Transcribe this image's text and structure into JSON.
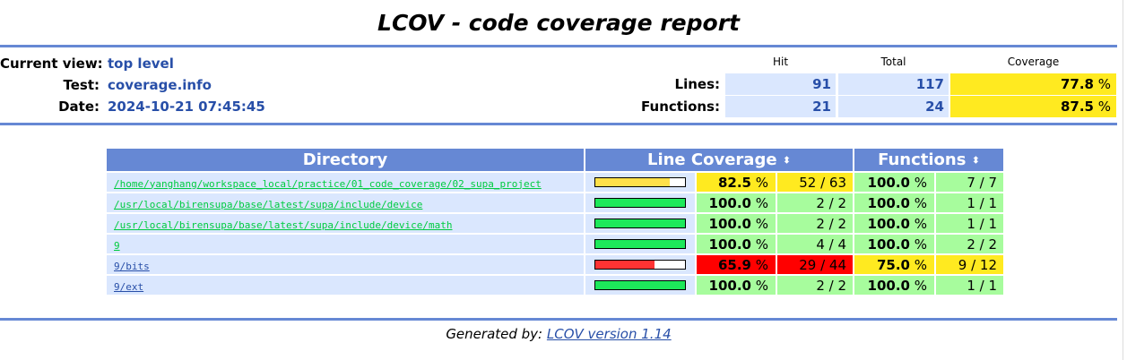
{
  "title": "LCOV - code coverage report",
  "header": {
    "info": [
      {
        "label": "Current view:",
        "value": "top level"
      },
      {
        "label": "Test:",
        "value": "coverage.info"
      },
      {
        "label": "Date:",
        "value": "2024-10-21 07:45:45"
      }
    ],
    "stats": {
      "columns": {
        "hit": "Hit",
        "total": "Total",
        "coverage": "Coverage"
      },
      "rows": [
        {
          "label": "Lines:",
          "hit": "91",
          "total": "117",
          "coverage": "77.8",
          "unit": " %",
          "level": "med"
        },
        {
          "label": "Functions:",
          "hit": "21",
          "total": "24",
          "coverage": "87.5",
          "unit": " %",
          "level": "med"
        }
      ]
    }
  },
  "table": {
    "headers": {
      "directory": "Directory",
      "line_coverage": "Line Coverage",
      "functions": "Functions",
      "sort_icon": "⬍"
    },
    "rows": [
      {
        "dir": "/home/yanghang/workspace_local/practice/01_code_coverage/02_supa_project",
        "bar_pct": 82.5,
        "bar_color": "#ffe04a",
        "line_pct": "82.5",
        "line_level": "med",
        "line_hits": "52 / 63",
        "func_pct": "100.0",
        "func_level": "hi",
        "func_hits": "7 / 7",
        "visited": false
      },
      {
        "dir": "/usr/local/birensupa/base/latest/supa/include/device",
        "bar_pct": 100,
        "bar_color": "#1de95a",
        "line_pct": "100.0",
        "line_level": "hi",
        "line_hits": "2 / 2",
        "func_pct": "100.0",
        "func_level": "hi",
        "func_hits": "1 / 1",
        "visited": false
      },
      {
        "dir": "/usr/local/birensupa/base/latest/supa/include/device/math",
        "bar_pct": 100,
        "bar_color": "#1de95a",
        "line_pct": "100.0",
        "line_level": "hi",
        "line_hits": "2 / 2",
        "func_pct": "100.0",
        "func_level": "hi",
        "func_hits": "1 / 1",
        "visited": false
      },
      {
        "dir": "9",
        "bar_pct": 100,
        "bar_color": "#1de95a",
        "line_pct": "100.0",
        "line_level": "hi",
        "line_hits": "4 / 4",
        "func_pct": "100.0",
        "func_level": "hi",
        "func_hits": "2 / 2",
        "visited": false
      },
      {
        "dir": "9/bits",
        "bar_pct": 65.9,
        "bar_color": "#ff3333",
        "line_pct": "65.9",
        "line_level": "lo",
        "line_hits": "29 / 44",
        "func_pct": "75.0",
        "func_level": "med",
        "func_hits": "9 / 12",
        "visited": true
      },
      {
        "dir": "9/ext",
        "bar_pct": 100,
        "bar_color": "#1de95a",
        "line_pct": "100.0",
        "line_level": "hi",
        "line_hits": "2 / 2",
        "func_pct": "100.0",
        "func_level": "hi",
        "func_hits": "1 / 1",
        "visited": true
      }
    ],
    "unit": " %"
  },
  "footer": {
    "prefix": "Generated by: ",
    "link": "LCOV version 1.14"
  },
  "colors": {
    "rule": "#6688d4",
    "hi": "#a7fc9d",
    "med": "#ffea20",
    "lo": "#ff0000",
    "cell_bg": "#dae7fe",
    "value_text": "#284fa8"
  }
}
